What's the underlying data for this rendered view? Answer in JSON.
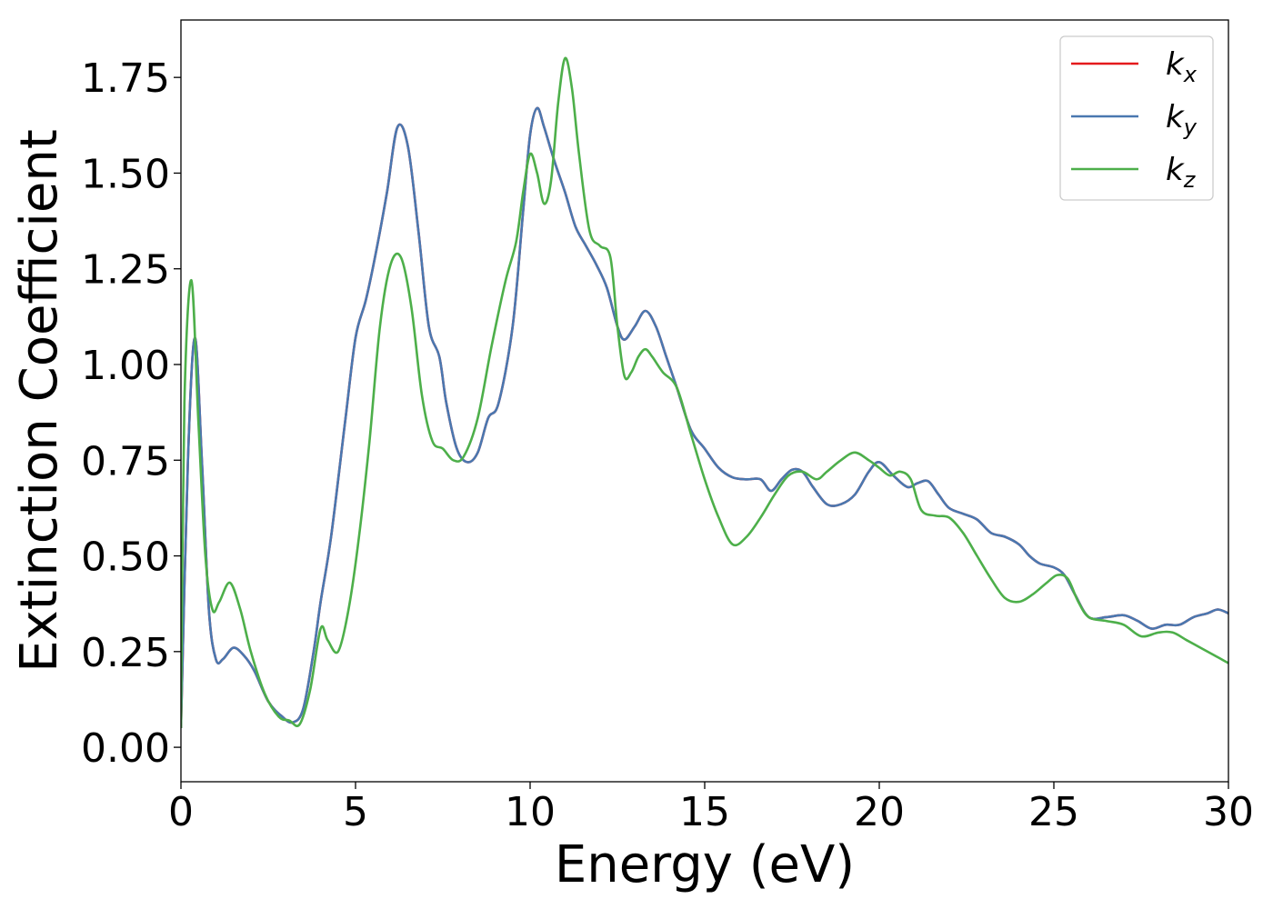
{
  "chart_data": {
    "type": "line",
    "xlabel": "Energy (eV)",
    "ylabel": "Extinction Coefficient",
    "xlim": [
      0,
      30
    ],
    "ylim": [
      -0.09,
      1.9
    ],
    "xticks": [
      0,
      5,
      10,
      15,
      20,
      25,
      30
    ],
    "xtick_labels": [
      "0",
      "5",
      "10",
      "15",
      "20",
      "25",
      "30"
    ],
    "yticks": [
      0,
      0.25,
      0.5,
      0.75,
      1.0,
      1.25,
      1.5,
      1.75
    ],
    "ytick_labels": [
      "0.00",
      "0.25",
      "0.50",
      "0.75",
      "1.00",
      "1.25",
      "1.50",
      "1.75"
    ],
    "grid": false,
    "legend_position": "top-right",
    "series": [
      {
        "name": "k",
        "subscript": "x",
        "color": "#e41a1c",
        "x": [
          0,
          0.2,
          0.4,
          0.6,
          0.8,
          1.0,
          1.2,
          1.5,
          1.8,
          2.1,
          2.5,
          2.9,
          3.2,
          3.5,
          3.8,
          4.0,
          4.3,
          4.7,
          5.0,
          5.3,
          5.6,
          5.9,
          6.2,
          6.5,
          6.8,
          7.1,
          7.4,
          7.6,
          7.9,
          8.2,
          8.5,
          8.8,
          9.1,
          9.5,
          9.8,
          10.0,
          10.2,
          10.4,
          10.7,
          11.0,
          11.3,
          11.6,
          11.9,
          12.2,
          12.5,
          12.7,
          13.0,
          13.3,
          13.6,
          13.9,
          14.2,
          14.6,
          15.0,
          15.4,
          15.8,
          16.2,
          16.6,
          16.9,
          17.2,
          17.5,
          17.8,
          18.1,
          18.5,
          18.9,
          19.3,
          19.7,
          20.0,
          20.4,
          20.8,
          21.1,
          21.4,
          21.7,
          22.0,
          22.4,
          22.8,
          23.2,
          23.6,
          24.0,
          24.3,
          24.6,
          25.0,
          25.3,
          25.6,
          26.0,
          26.5,
          27.0,
          27.4,
          27.8,
          28.2,
          28.6,
          29.0,
          29.4,
          29.7,
          30.0
        ],
        "y": [
          0.05,
          0.75,
          1.07,
          0.75,
          0.36,
          0.23,
          0.23,
          0.26,
          0.24,
          0.2,
          0.12,
          0.08,
          0.065,
          0.1,
          0.25,
          0.38,
          0.55,
          0.85,
          1.07,
          1.17,
          1.3,
          1.45,
          1.62,
          1.57,
          1.35,
          1.1,
          1.02,
          0.9,
          0.78,
          0.745,
          0.77,
          0.86,
          0.9,
          1.1,
          1.4,
          1.6,
          1.67,
          1.62,
          1.53,
          1.45,
          1.36,
          1.31,
          1.26,
          1.2,
          1.1,
          1.065,
          1.1,
          1.14,
          1.1,
          1.02,
          0.94,
          0.83,
          0.78,
          0.73,
          0.705,
          0.7,
          0.7,
          0.67,
          0.7,
          0.725,
          0.72,
          0.68,
          0.635,
          0.635,
          0.66,
          0.72,
          0.745,
          0.71,
          0.68,
          0.69,
          0.695,
          0.66,
          0.625,
          0.61,
          0.595,
          0.56,
          0.55,
          0.53,
          0.5,
          0.48,
          0.47,
          0.45,
          0.4,
          0.34,
          0.34,
          0.345,
          0.33,
          0.31,
          0.32,
          0.32,
          0.34,
          0.35,
          0.36,
          0.35
        ]
      },
      {
        "name": "k",
        "subscript": "y",
        "color": "#4a78b0",
        "x": [
          0,
          0.2,
          0.4,
          0.6,
          0.8,
          1.0,
          1.2,
          1.5,
          1.8,
          2.1,
          2.5,
          2.9,
          3.2,
          3.5,
          3.8,
          4.0,
          4.3,
          4.7,
          5.0,
          5.3,
          5.6,
          5.9,
          6.2,
          6.5,
          6.8,
          7.1,
          7.4,
          7.6,
          7.9,
          8.2,
          8.5,
          8.8,
          9.1,
          9.5,
          9.8,
          10.0,
          10.2,
          10.4,
          10.7,
          11.0,
          11.3,
          11.6,
          11.9,
          12.2,
          12.5,
          12.7,
          13.0,
          13.3,
          13.6,
          13.9,
          14.2,
          14.6,
          15.0,
          15.4,
          15.8,
          16.2,
          16.6,
          16.9,
          17.2,
          17.5,
          17.8,
          18.1,
          18.5,
          18.9,
          19.3,
          19.7,
          20.0,
          20.4,
          20.8,
          21.1,
          21.4,
          21.7,
          22.0,
          22.4,
          22.8,
          23.2,
          23.6,
          24.0,
          24.3,
          24.6,
          25.0,
          25.3,
          25.6,
          26.0,
          26.5,
          27.0,
          27.4,
          27.8,
          28.2,
          28.6,
          29.0,
          29.4,
          29.7,
          30.0
        ],
        "y": [
          0.05,
          0.75,
          1.07,
          0.75,
          0.36,
          0.23,
          0.23,
          0.26,
          0.24,
          0.2,
          0.12,
          0.08,
          0.065,
          0.1,
          0.25,
          0.38,
          0.55,
          0.85,
          1.07,
          1.17,
          1.3,
          1.45,
          1.62,
          1.57,
          1.35,
          1.1,
          1.02,
          0.9,
          0.78,
          0.745,
          0.77,
          0.86,
          0.9,
          1.1,
          1.4,
          1.6,
          1.67,
          1.62,
          1.53,
          1.45,
          1.36,
          1.31,
          1.26,
          1.2,
          1.1,
          1.065,
          1.1,
          1.14,
          1.1,
          1.02,
          0.94,
          0.83,
          0.78,
          0.73,
          0.705,
          0.7,
          0.7,
          0.67,
          0.7,
          0.725,
          0.72,
          0.68,
          0.635,
          0.635,
          0.66,
          0.72,
          0.745,
          0.71,
          0.68,
          0.69,
          0.695,
          0.66,
          0.625,
          0.61,
          0.595,
          0.56,
          0.55,
          0.53,
          0.5,
          0.48,
          0.47,
          0.45,
          0.4,
          0.34,
          0.34,
          0.345,
          0.33,
          0.31,
          0.32,
          0.32,
          0.34,
          0.35,
          0.36,
          0.35
        ]
      },
      {
        "name": "k",
        "subscript": "z",
        "color": "#4daf4a",
        "x": [
          0,
          0.1,
          0.3,
          0.5,
          0.7,
          0.9,
          1.1,
          1.4,
          1.7,
          2.0,
          2.4,
          2.8,
          3.1,
          3.4,
          3.7,
          4.0,
          4.2,
          4.5,
          4.8,
          5.1,
          5.4,
          5.7,
          6.0,
          6.3,
          6.6,
          6.9,
          7.2,
          7.5,
          7.8,
          8.1,
          8.5,
          8.9,
          9.3,
          9.6,
          9.8,
          10.0,
          10.2,
          10.4,
          10.6,
          10.8,
          11.0,
          11.2,
          11.4,
          11.7,
          12.0,
          12.3,
          12.5,
          12.7,
          12.9,
          13.1,
          13.3,
          13.5,
          13.8,
          14.2,
          14.6,
          15.0,
          15.4,
          15.8,
          16.2,
          16.6,
          17.0,
          17.4,
          17.8,
          18.2,
          18.5,
          18.9,
          19.3,
          19.7,
          20.0,
          20.3,
          20.6,
          20.9,
          21.2,
          21.6,
          22.0,
          22.4,
          22.8,
          23.2,
          23.6,
          24.0,
          24.4,
          24.8,
          25.1,
          25.4,
          25.7,
          26.0,
          26.5,
          27.0,
          27.5,
          28.0,
          28.4,
          28.8,
          29.2,
          29.6,
          30.0
        ],
        "y": [
          0.05,
          0.9,
          1.22,
          0.85,
          0.5,
          0.36,
          0.38,
          0.43,
          0.36,
          0.25,
          0.14,
          0.08,
          0.07,
          0.06,
          0.15,
          0.31,
          0.28,
          0.25,
          0.36,
          0.55,
          0.8,
          1.1,
          1.26,
          1.28,
          1.15,
          0.92,
          0.8,
          0.78,
          0.75,
          0.76,
          0.86,
          1.05,
          1.22,
          1.32,
          1.45,
          1.55,
          1.5,
          1.42,
          1.48,
          1.68,
          1.8,
          1.72,
          1.55,
          1.35,
          1.31,
          1.28,
          1.1,
          0.97,
          0.98,
          1.02,
          1.04,
          1.02,
          0.98,
          0.94,
          0.82,
          0.7,
          0.6,
          0.53,
          0.55,
          0.6,
          0.66,
          0.71,
          0.72,
          0.7,
          0.72,
          0.75,
          0.77,
          0.75,
          0.73,
          0.71,
          0.72,
          0.7,
          0.62,
          0.605,
          0.6,
          0.56,
          0.5,
          0.44,
          0.39,
          0.38,
          0.4,
          0.43,
          0.45,
          0.44,
          0.38,
          0.34,
          0.33,
          0.32,
          0.29,
          0.3,
          0.3,
          0.28,
          0.26,
          0.24,
          0.22
        ]
      }
    ]
  }
}
